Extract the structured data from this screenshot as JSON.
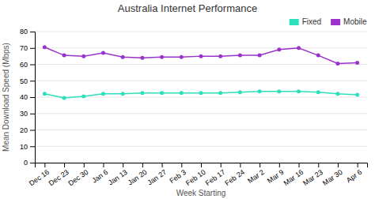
{
  "chart_data": {
    "type": "line",
    "title": "Australia Internet Performance",
    "xlabel": "Week Starting",
    "ylabel": "Mean Download Speed (Mbps)",
    "categories": [
      "Dec 16",
      "Dec 23",
      "Dec 30",
      "Jan 6",
      "Jan 13",
      "Jan 20",
      "Jan 27",
      "Feb 3",
      "Feb 10",
      "Feb 17",
      "Feb 24",
      "Mar 2",
      "Mar 9",
      "Mar 16",
      "Mar 23",
      "Mar 30",
      "Apr 6"
    ],
    "series": [
      {
        "name": "Fixed",
        "color": "#2de0bc",
        "values": [
          42,
          39.5,
          40.5,
          42,
          42,
          42.5,
          42.5,
          42.5,
          42.5,
          42.5,
          43,
          43.5,
          43.5,
          43.5,
          43,
          42,
          41.5
        ]
      },
      {
        "name": "Mobile",
        "color": "#9933cc",
        "values": [
          70.5,
          65.5,
          65,
          67,
          64.5,
          64,
          64.5,
          64.5,
          65,
          65,
          65.5,
          65.5,
          69,
          70,
          65.5,
          60.5,
          61
        ]
      }
    ],
    "ylim": [
      0,
      80
    ],
    "yticks": [
      0,
      10,
      20,
      30,
      40,
      50,
      60,
      70,
      80
    ],
    "grid": true,
    "legend": "upper right",
    "marker": "circle"
  }
}
